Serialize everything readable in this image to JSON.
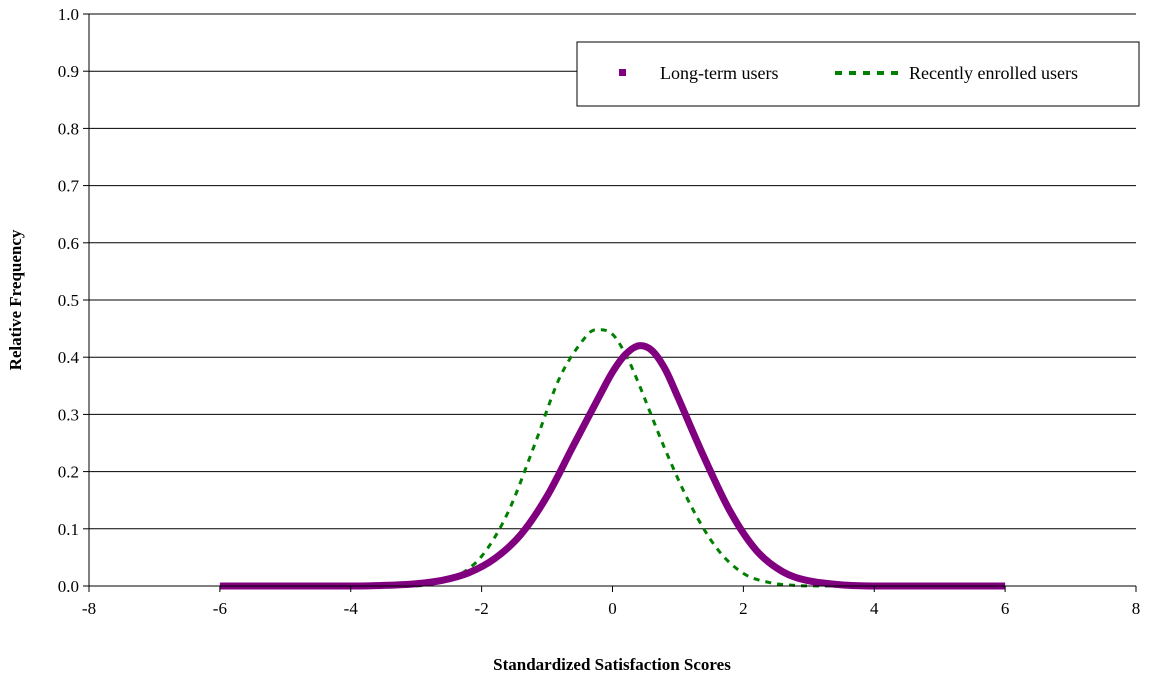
{
  "chart_data": {
    "type": "line",
    "title": "",
    "xlabel": "Standardized Satisfaction Scores",
    "ylabel": "Relative Frequency",
    "xlim": [
      -8,
      8
    ],
    "ylim": [
      0,
      1.0
    ],
    "x_ticks": [
      "-8",
      "-6",
      "-4",
      "-2",
      "0",
      "2",
      "4",
      "6",
      "8"
    ],
    "y_ticks": [
      "0.0",
      "0.1",
      "0.2",
      "0.3",
      "0.4",
      "0.5",
      "0.6",
      "0.7",
      "0.8",
      "0.9",
      "1.0"
    ],
    "grid": "horizontal",
    "legend_position": "top-right",
    "series": [
      {
        "name": "Long-term users",
        "color": "#800080",
        "style": "solid-markers",
        "x": [
          -6.0,
          -5.0,
          -4.0,
          -3.5,
          -3.0,
          -2.6,
          -2.2,
          -1.8,
          -1.4,
          -1.0,
          -0.6,
          -0.2,
          0.0,
          0.2,
          0.4,
          0.6,
          0.8,
          1.0,
          1.4,
          1.8,
          2.2,
          2.6,
          3.0,
          3.5,
          4.0,
          5.0,
          6.0
        ],
        "y": [
          0.0,
          0.0,
          0.0,
          0.001,
          0.004,
          0.01,
          0.023,
          0.048,
          0.09,
          0.157,
          0.245,
          0.332,
          0.374,
          0.405,
          0.42,
          0.412,
          0.38,
          0.33,
          0.225,
          0.13,
          0.062,
          0.025,
          0.009,
          0.002,
          0.0,
          0.0,
          0.0
        ]
      },
      {
        "name": "Recently enrolled users",
        "color": "#008000",
        "style": "dashed",
        "x": [
          -3.0,
          -2.8,
          -2.4,
          -2.0,
          -1.6,
          -1.2,
          -0.8,
          -0.4,
          -0.2,
          0.0,
          0.2,
          0.4,
          0.8,
          1.2,
          1.6,
          2.0,
          2.4,
          2.8,
          3.2,
          3.5
        ],
        "y": [
          0.0,
          0.003,
          0.016,
          0.052,
          0.128,
          0.244,
          0.366,
          0.437,
          0.448,
          0.44,
          0.405,
          0.354,
          0.24,
          0.14,
          0.065,
          0.022,
          0.006,
          0.001,
          0.0,
          0.0
        ]
      }
    ]
  }
}
